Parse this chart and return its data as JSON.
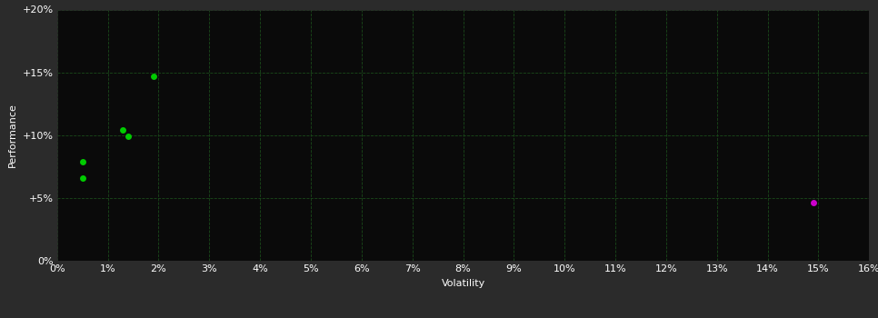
{
  "background_color": "#2b2b2b",
  "plot_bg_color": "#0a0a0a",
  "grid_color": "#1a4a1a",
  "text_color": "#ffffff",
  "xlabel": "Volatility",
  "ylabel": "Performance",
  "xlim": [
    0,
    0.16
  ],
  "ylim": [
    0,
    0.2
  ],
  "xticks": [
    0.0,
    0.01,
    0.02,
    0.03,
    0.04,
    0.05,
    0.06,
    0.07,
    0.08,
    0.09,
    0.1,
    0.11,
    0.12,
    0.13,
    0.14,
    0.15,
    0.16
  ],
  "yticks": [
    0.0,
    0.05,
    0.1,
    0.15,
    0.2
  ],
  "ytick_labels": [
    "0%",
    "+5%",
    "+10%",
    "+15%",
    "+20%"
  ],
  "points_green": [
    [
      0.005,
      0.079
    ],
    [
      0.005,
      0.066
    ],
    [
      0.013,
      0.104
    ],
    [
      0.014,
      0.099
    ],
    [
      0.019,
      0.147
    ]
  ],
  "points_magenta": [
    [
      0.149,
      0.046
    ]
  ],
  "green_color": "#00cc00",
  "magenta_color": "#cc00cc",
  "marker_size": 5,
  "font_size_axis_label": 8,
  "font_size_tick": 8
}
